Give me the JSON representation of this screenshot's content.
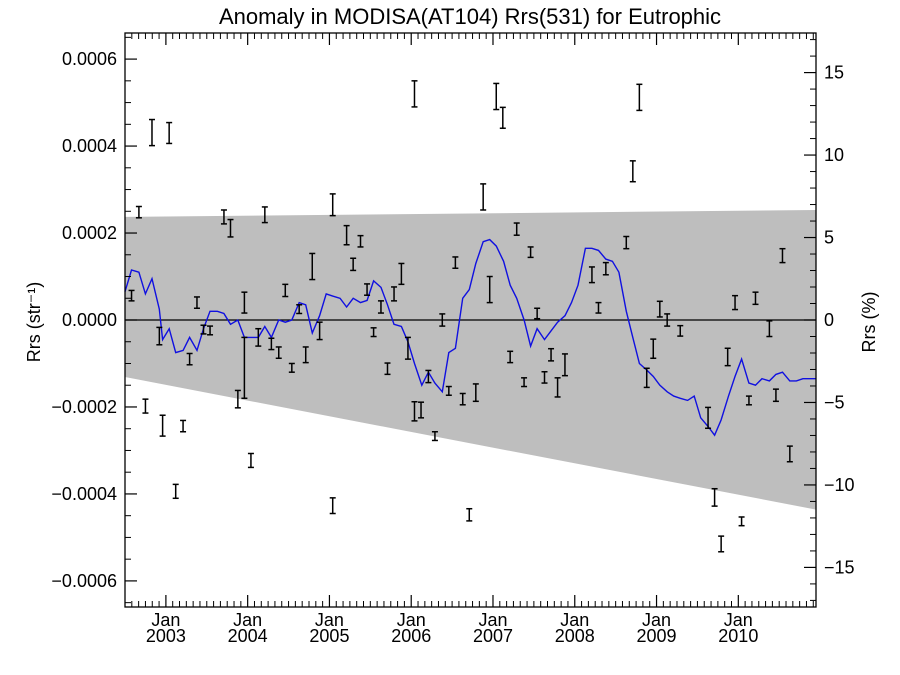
{
  "chart_data": {
    "type": "line",
    "title": "Anomaly in MODISA(AT104) Rrs(531) for Eutrophic",
    "ylabel_left": "Rrs (str⁻¹)",
    "ylabel_right": "Rrs (%)",
    "x_range": [
      2002.5,
      2010.95
    ],
    "ylim_left": [
      -0.00066,
      0.00066
    ],
    "ylim_right": [
      -17.4,
      17.4
    ],
    "y_ticks_left": [
      {
        "value": 0.0006,
        "label": "0.0006"
      },
      {
        "value": 0.0004,
        "label": "0.0004"
      },
      {
        "value": 0.0002,
        "label": "0.0002"
      },
      {
        "value": 0.0,
        "label": "0.0000"
      },
      {
        "value": -0.0002,
        "label": "−0.0002"
      },
      {
        "value": -0.0004,
        "label": "−0.0004"
      },
      {
        "value": -0.0006,
        "label": "−0.0006"
      }
    ],
    "y_ticks_right": [
      {
        "value": 15,
        "label": "15"
      },
      {
        "value": 10,
        "label": "10"
      },
      {
        "value": 5,
        "label": "5"
      },
      {
        "value": 0,
        "label": "0"
      },
      {
        "value": -5,
        "label": "−5"
      },
      {
        "value": -10,
        "label": "−10"
      },
      {
        "value": -15,
        "label": "−15"
      }
    ],
    "x_ticks": [
      {
        "x": 2003.0,
        "month": "Jan",
        "year": "2003"
      },
      {
        "x": 2004.0,
        "month": "Jan",
        "year": "2004"
      },
      {
        "x": 2005.0,
        "month": "Jan",
        "year": "2005"
      },
      {
        "x": 2006.0,
        "month": "Jan",
        "year": "2006"
      },
      {
        "x": 2007.0,
        "month": "Jan",
        "year": "2007"
      },
      {
        "x": 2008.0,
        "month": "Jan",
        "year": "2008"
      },
      {
        "x": 2009.0,
        "month": "Jan",
        "year": "2009"
      },
      {
        "x": 2010.0,
        "month": "Jan",
        "year": "2010"
      }
    ],
    "band": {
      "color": "#bebebe",
      "upper": [
        [
          2002.5,
          0.000237
        ],
        [
          2010.95,
          0.000253
        ]
      ],
      "lower": [
        [
          2002.5,
          -0.000131
        ],
        [
          2010.95,
          -0.000436
        ]
      ]
    },
    "zero_line": 0.0,
    "error_bars": [
      [
        2002.58,
        5.6e-05,
        1.2e-05
      ],
      [
        2002.67,
        0.000248,
        1.3e-05
      ],
      [
        2002.75,
        -0.000198,
        1.6e-05
      ],
      [
        2002.83,
        0.000431,
        3e-05
      ],
      [
        2002.92,
        -3.7e-05,
        2e-05
      ],
      [
        2002.96,
        -0.000243,
        2.4e-05
      ],
      [
        2003.04,
        0.00043,
        2.4e-05
      ],
      [
        2003.12,
        -0.000394,
        1.6e-05
      ],
      [
        2003.21,
        -0.000244,
        1.3e-05
      ],
      [
        2003.29,
        -9e-05,
        1.3e-05
      ],
      [
        2003.38,
        4e-05,
        1.3e-05
      ],
      [
        2003.46,
        -2.2e-05,
        1e-05
      ],
      [
        2003.54,
        -2.4e-05,
        1e-05
      ],
      [
        2003.71,
        0.000237,
        1.6e-05
      ],
      [
        2003.79,
        0.000211,
        2e-05
      ],
      [
        2003.88,
        -0.000182,
        2e-05
      ],
      [
        2003.96,
        -0.00011,
        7e-05
      ],
      [
        2003.96,
        4e-05,
        2.4e-05
      ],
      [
        2004.04,
        -0.000323,
        1.6e-05
      ],
      [
        2004.13,
        -4e-05,
        2e-05
      ],
      [
        2004.21,
        0.000242,
        1.8e-05
      ],
      [
        2004.29,
        -5.5e-05,
        1.3e-05
      ],
      [
        2004.38,
        -7.5e-05,
        1.3e-05
      ],
      [
        2004.46,
        6.8e-05,
        1.4e-05
      ],
      [
        2004.54,
        -0.00011,
        1e-05
      ],
      [
        2004.63,
        2.5e-05,
        1e-05
      ],
      [
        2004.71,
        -8e-05,
        1.8e-05
      ],
      [
        2004.79,
        0.000123,
        3e-05
      ],
      [
        2004.88,
        -2.5e-05,
        2e-05
      ],
      [
        2005.04,
        0.000265,
        2.5e-05
      ],
      [
        2005.04,
        -0.000427,
        1.8e-05
      ],
      [
        2005.21,
        0.000195,
        2.2e-05
      ],
      [
        2005.29,
        0.000128,
        1.4e-05
      ],
      [
        2005.38,
        0.000181,
        1.3e-05
      ],
      [
        2005.46,
        7e-05,
        1.3e-05
      ],
      [
        2005.54,
        -2.8e-05,
        1e-05
      ],
      [
        2005.63,
        3e-05,
        1.4e-05
      ],
      [
        2005.71,
        -0.000112,
        1.3e-05
      ],
      [
        2005.79,
        6e-05,
        1.6e-05
      ],
      [
        2005.88,
        0.000106,
        2.4e-05
      ],
      [
        2005.96,
        -6.5e-05,
        2.5e-05
      ],
      [
        2006.04,
        -0.00021,
        2.2e-05
      ],
      [
        2006.04,
        0.00052,
        3e-05
      ],
      [
        2006.12,
        -0.000207,
        1.8e-05
      ],
      [
        2006.21,
        -0.00013,
        1.4e-05
      ],
      [
        2006.29,
        -0.000267,
        1e-05
      ],
      [
        2006.38,
        0.0,
        1.4e-05
      ],
      [
        2006.46,
        -0.000163,
        1e-05
      ],
      [
        2006.54,
        0.000132,
        1.3e-05
      ],
      [
        2006.63,
        -0.000182,
        1.3e-05
      ],
      [
        2006.71,
        -0.000448,
        1.4e-05
      ],
      [
        2006.79,
        -0.000167,
        2e-05
      ],
      [
        2006.88,
        0.000283,
        3e-05
      ],
      [
        2006.96,
        7e-05,
        3e-05
      ],
      [
        2007.04,
        0.000514,
        3e-05
      ],
      [
        2007.12,
        0.000465,
        2.4e-05
      ],
      [
        2007.21,
        -8.5e-05,
        1.3e-05
      ],
      [
        2007.29,
        0.000209,
        1.4e-05
      ],
      [
        2007.38,
        -0.000143,
        1e-05
      ],
      [
        2007.46,
        0.000156,
        1.2e-05
      ],
      [
        2007.54,
        1.5e-05,
        1.2e-05
      ],
      [
        2007.63,
        -0.000132,
        1.3e-05
      ],
      [
        2007.71,
        -8e-05,
        1.4e-05
      ],
      [
        2007.79,
        -0.000155,
        2.2e-05
      ],
      [
        2007.88,
        -0.000103,
        2.5e-05
      ],
      [
        2008.21,
        0.000104,
        1.8e-05
      ],
      [
        2008.29,
        2.8e-05,
        1.2e-05
      ],
      [
        2008.38,
        0.000118,
        1.4e-05
      ],
      [
        2008.63,
        0.000178,
        1.4e-05
      ],
      [
        2008.71,
        0.000342,
        2.4e-05
      ],
      [
        2008.79,
        0.000512,
        3e-05
      ],
      [
        2008.88,
        -0.000133,
        2.2e-05
      ],
      [
        2008.96,
        -6.6e-05,
        2.2e-05
      ],
      [
        2009.04,
        2.5e-05,
        1.8e-05
      ],
      [
        2009.13,
        0.0,
        1.4e-05
      ],
      [
        2009.29,
        -2.5e-05,
        1.2e-05
      ],
      [
        2009.63,
        -0.000225,
        2.4e-05
      ],
      [
        2009.71,
        -0.000408,
        2e-05
      ],
      [
        2009.79,
        -0.000515,
        1.8e-05
      ],
      [
        2009.87,
        -8.5e-05,
        2e-05
      ],
      [
        2009.96,
        4e-05,
        1.6e-05
      ],
      [
        2010.04,
        -0.000463,
        1e-05
      ],
      [
        2010.13,
        -0.000185,
        1e-05
      ],
      [
        2010.21,
        5e-05,
        1.4e-05
      ],
      [
        2010.38,
        -2e-05,
        1.8e-05
      ],
      [
        2010.46,
        -0.000173,
        1.4e-05
      ],
      [
        2010.54,
        0.000148,
        1.6e-05
      ],
      [
        2010.63,
        -0.000308,
        1.8e-05
      ]
    ],
    "series": [
      {
        "color": "#1010e0",
        "values": [
          [
            2002.5,
            6.5e-05
          ],
          [
            2002.58,
            0.000115
          ],
          [
            2002.67,
            0.00011
          ],
          [
            2002.75,
            6e-05
          ],
          [
            2002.83,
            9.5e-05
          ],
          [
            2002.92,
            2.5e-05
          ],
          [
            2002.96,
            -4.5e-05
          ],
          [
            2003.04,
            -2e-05
          ],
          [
            2003.12,
            -7.5e-05
          ],
          [
            2003.21,
            -7e-05
          ],
          [
            2003.29,
            -4e-05
          ],
          [
            2003.38,
            -7e-05
          ],
          [
            2003.46,
            -2e-05
          ],
          [
            2003.54,
            2e-05
          ],
          [
            2003.63,
            2e-05
          ],
          [
            2003.71,
            1.5e-05
          ],
          [
            2003.79,
            -1e-05
          ],
          [
            2003.88,
            0.0
          ],
          [
            2003.96,
            -4e-05
          ],
          [
            2004.04,
            -4e-05
          ],
          [
            2004.13,
            -4e-05
          ],
          [
            2004.21,
            -1.5e-05
          ],
          [
            2004.29,
            -4e-05
          ],
          [
            2004.38,
            0.0
          ],
          [
            2004.46,
            -5e-06
          ],
          [
            2004.54,
            0.0
          ],
          [
            2004.63,
            4e-05
          ],
          [
            2004.71,
            3.5e-05
          ],
          [
            2004.79,
            -3e-05
          ],
          [
            2004.88,
            1e-05
          ],
          [
            2004.96,
            6e-05
          ],
          [
            2005.04,
            5.5e-05
          ],
          [
            2005.13,
            5e-05
          ],
          [
            2005.21,
            3e-05
          ],
          [
            2005.29,
            5e-05
          ],
          [
            2005.38,
            4e-05
          ],
          [
            2005.46,
            4.5e-05
          ],
          [
            2005.54,
            9e-05
          ],
          [
            2005.63,
            7.5e-05
          ],
          [
            2005.71,
            3.5e-05
          ],
          [
            2005.79,
            -1e-05
          ],
          [
            2005.88,
            -1.5e-05
          ],
          [
            2005.96,
            -5e-05
          ],
          [
            2006.04,
            -0.0001
          ],
          [
            2006.13,
            -0.00015
          ],
          [
            2006.21,
            -0.00012
          ],
          [
            2006.29,
            -0.000145
          ],
          [
            2006.38,
            -0.000165
          ],
          [
            2006.46,
            -7.5e-05
          ],
          [
            2006.54,
            -6.5e-05
          ],
          [
            2006.63,
            5e-05
          ],
          [
            2006.71,
            7e-05
          ],
          [
            2006.79,
            0.00013
          ],
          [
            2006.88,
            0.00018
          ],
          [
            2006.96,
            0.000185
          ],
          [
            2007.04,
            0.00017
          ],
          [
            2007.13,
            0.000135
          ],
          [
            2007.21,
            8e-05
          ],
          [
            2007.29,
            5e-05
          ],
          [
            2007.38,
            0.0
          ],
          [
            2007.46,
            -6e-05
          ],
          [
            2007.54,
            -2e-05
          ],
          [
            2007.63,
            -4.5e-05
          ],
          [
            2007.71,
            -2.5e-05
          ],
          [
            2007.79,
            -5e-06
          ],
          [
            2007.88,
            1e-05
          ],
          [
            2007.96,
            4e-05
          ],
          [
            2008.04,
            8e-05
          ],
          [
            2008.13,
            0.000165
          ],
          [
            2008.21,
            0.000165
          ],
          [
            2008.29,
            0.00016
          ],
          [
            2008.38,
            0.00014
          ],
          [
            2008.46,
            0.000135
          ],
          [
            2008.54,
            0.00011
          ],
          [
            2008.63,
            2e-05
          ],
          [
            2008.71,
            -4e-05
          ],
          [
            2008.79,
            -0.0001
          ],
          [
            2008.88,
            -0.000115
          ],
          [
            2008.96,
            -0.00013
          ],
          [
            2009.04,
            -0.00015
          ],
          [
            2009.13,
            -0.000165
          ],
          [
            2009.21,
            -0.000175
          ],
          [
            2009.29,
            -0.00018
          ],
          [
            2009.38,
            -0.000185
          ],
          [
            2009.46,
            -0.000175
          ],
          [
            2009.54,
            -0.000225
          ],
          [
            2009.63,
            -0.000245
          ],
          [
            2009.71,
            -0.000265
          ],
          [
            2009.79,
            -0.00023
          ],
          [
            2009.88,
            -0.000175
          ],
          [
            2009.96,
            -0.00013
          ],
          [
            2010.04,
            -9e-05
          ],
          [
            2010.13,
            -0.000145
          ],
          [
            2010.21,
            -0.00015
          ],
          [
            2010.29,
            -0.000135
          ],
          [
            2010.38,
            -0.00014
          ],
          [
            2010.46,
            -0.000125
          ],
          [
            2010.54,
            -0.00012
          ],
          [
            2010.63,
            -0.00014
          ],
          [
            2010.71,
            -0.00014
          ],
          [
            2010.79,
            -0.000135
          ],
          [
            2010.87,
            -0.000135
          ],
          [
            2010.95,
            -0.000135
          ]
        ]
      }
    ]
  }
}
